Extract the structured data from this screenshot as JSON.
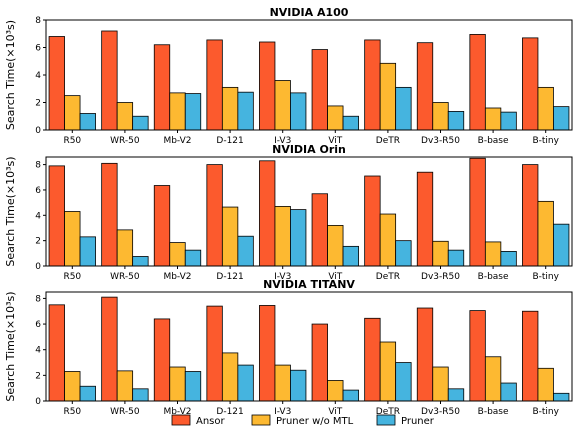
{
  "chart_data": [
    {
      "type": "bar",
      "title": "NVIDIA A100",
      "ylabel": "Search Time(×10³s)",
      "ylim": [
        0,
        8
      ],
      "yticks": [
        0,
        2,
        4,
        6,
        8
      ],
      "categories": [
        "R50",
        "WR-50",
        "Mb-V2",
        "D-121",
        "I-V3",
        "ViT",
        "DeTR",
        "Dv3-R50",
        "B-base",
        "B-tiny"
      ],
      "series": [
        {
          "name": "Ansor",
          "color": "#fc5a2d",
          "values": [
            6.8,
            7.2,
            6.2,
            6.55,
            6.4,
            5.85,
            6.55,
            6.35,
            6.95,
            6.7
          ]
        },
        {
          "name": "Pruner w/o MTL",
          "color": "#fdb931",
          "values": [
            2.5,
            2.0,
            2.7,
            3.1,
            3.6,
            1.75,
            4.85,
            2.0,
            1.6,
            3.1
          ]
        },
        {
          "name": "Pruner",
          "color": "#45b4df",
          "values": [
            1.2,
            1.0,
            2.65,
            2.75,
            2.7,
            1.0,
            3.1,
            1.35,
            1.3,
            1.7
          ]
        }
      ]
    },
    {
      "type": "bar",
      "title": "NVIDIA Orin",
      "ylabel": "Search Time(×10³s)",
      "ylim": [
        0,
        8.6
      ],
      "yticks": [
        0,
        2,
        4,
        6,
        8
      ],
      "categories": [
        "R50",
        "WR-50",
        "Mb-V2",
        "D-121",
        "I-V3",
        "ViT",
        "DeTR",
        "Dv3-R50",
        "B-base",
        "B-tiny"
      ],
      "series": [
        {
          "name": "Ansor",
          "color": "#fc5a2d",
          "values": [
            7.9,
            8.1,
            6.35,
            8.0,
            8.3,
            5.7,
            7.1,
            7.4,
            8.5,
            8.0
          ]
        },
        {
          "name": "Pruner w/o MTL",
          "color": "#fdb931",
          "values": [
            4.3,
            2.85,
            1.85,
            4.65,
            4.7,
            3.2,
            4.1,
            1.95,
            1.9,
            5.1
          ]
        },
        {
          "name": "Pruner",
          "color": "#45b4df",
          "values": [
            2.3,
            0.75,
            1.25,
            2.35,
            4.45,
            1.55,
            2.0,
            1.25,
            1.15,
            3.3
          ]
        }
      ]
    },
    {
      "type": "bar",
      "title": "NVIDIA TITANV",
      "ylabel": "Search Time(×10³s)",
      "ylim": [
        0,
        8.5
      ],
      "yticks": [
        0,
        2,
        4,
        6,
        8
      ],
      "categories": [
        "R50",
        "WR-50",
        "Mb-V2",
        "D-121",
        "I-V3",
        "ViT",
        "DeTR",
        "Dv3-R50",
        "B-base",
        "B-tiny"
      ],
      "series": [
        {
          "name": "Ansor",
          "color": "#fc5a2d",
          "values": [
            7.5,
            8.1,
            6.4,
            7.4,
            7.45,
            6.0,
            6.45,
            7.25,
            7.05,
            7.0
          ]
        },
        {
          "name": "Pruner w/o MTL",
          "color": "#fdb931",
          "values": [
            2.3,
            2.35,
            2.65,
            3.75,
            2.8,
            1.6,
            4.6,
            2.65,
            3.45,
            2.55
          ]
        },
        {
          "name": "Pruner",
          "color": "#45b4df",
          "values": [
            1.15,
            0.95,
            2.3,
            2.8,
            2.4,
            0.85,
            3.0,
            0.95,
            1.4,
            0.6
          ]
        }
      ]
    }
  ],
  "legend": {
    "placement": "bottom-center",
    "items": [
      {
        "label": "Ansor",
        "color": "#fc5a2d"
      },
      {
        "label": "Pruner w/o MTL",
        "color": "#fdb931"
      },
      {
        "label": "Pruner",
        "color": "#45b4df"
      }
    ]
  }
}
